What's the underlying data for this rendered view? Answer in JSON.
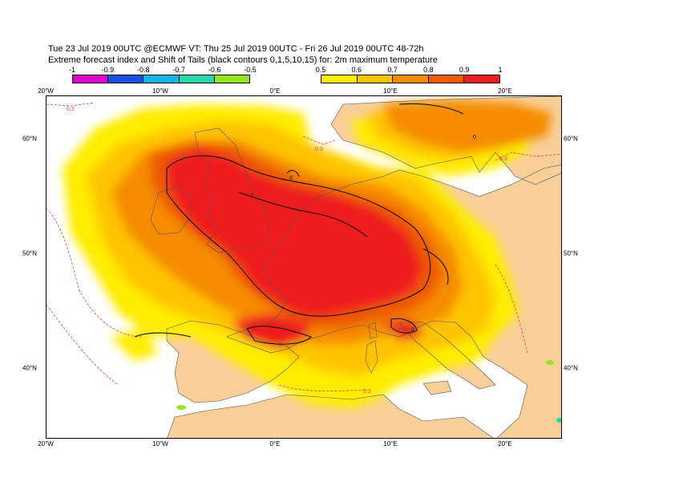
{
  "header": {
    "line1": "Tue 23 Jul 2019 00UTC @ECMWF VT: Thu 25 Jul 2019 00UTC - Fri 26 Jul 2019 00UTC  48-72h",
    "line2": "Extreme forecast index and Shift of Tails (black contours 0,1,5,10,15) for: 2m maximum temperature"
  },
  "legend_negative": {
    "labels": [
      "-1",
      "-0.9",
      "-0.8",
      "-0.7",
      "-0.6",
      "-0.5"
    ],
    "colors": [
      "#e000d0",
      "#1e50e0",
      "#14b4e6",
      "#28d7a8",
      "#96e61e"
    ]
  },
  "legend_positive": {
    "labels": [
      "0.5",
      "0.6",
      "0.7",
      "0.8",
      "0.9",
      "1"
    ],
    "colors": [
      "#ffec00",
      "#ffc400",
      "#f58c00",
      "#ee5a00",
      "#ee1c1c"
    ]
  },
  "axes": {
    "lon_labels": [
      "20°W",
      "10°W",
      "0°E",
      "10°E",
      "20°E"
    ],
    "lat_labels": [
      "60°N",
      "50°N",
      "40°N"
    ]
  },
  "contour_labels": {
    "efi_dashed": [
      "0.3",
      "0.3",
      "0.3",
      "0.3"
    ],
    "sot_black": [
      "1",
      "0",
      "0",
      "0"
    ]
  },
  "colors": {
    "land": "#f8cf99",
    "sea": "#ffffff",
    "dashed_contour": "#e04040"
  }
}
